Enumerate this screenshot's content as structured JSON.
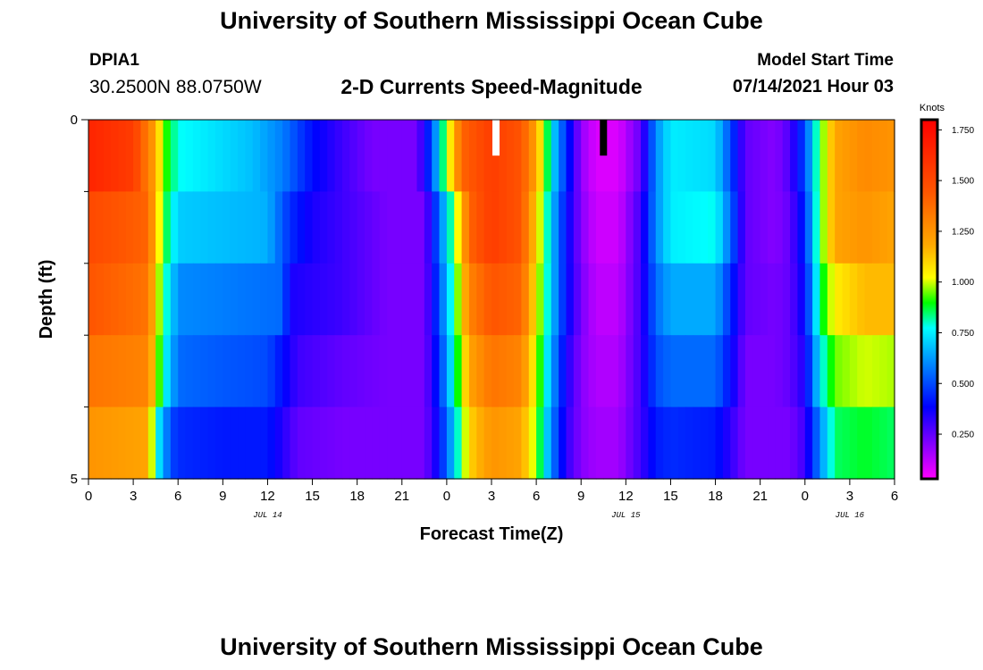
{
  "header": {
    "title": "University of Southern Mississippi Ocean Cube",
    "station": "DPIA1",
    "coordinates": "30.2500N  88.0750W",
    "subtitle": "2-D Currents Speed-Magnitude",
    "model_start_label": "Model Start Time",
    "model_start_value": "07/14/2021 Hour 03"
  },
  "footer": {
    "title": "University of Southern Mississippi Ocean Cube"
  },
  "chart_data": {
    "type": "heatmap",
    "xlabel": "Forecast Time(Z)",
    "ylabel": "Depth (ft)",
    "x_range_hours": [
      0,
      54
    ],
    "x_ticks": [
      {
        "h": 0,
        "label": "0"
      },
      {
        "h": 3,
        "label": "3"
      },
      {
        "h": 6,
        "label": "6"
      },
      {
        "h": 9,
        "label": "9"
      },
      {
        "h": 12,
        "label": "12"
      },
      {
        "h": 15,
        "label": "15"
      },
      {
        "h": 18,
        "label": "18"
      },
      {
        "h": 21,
        "label": "21"
      },
      {
        "h": 24,
        "label": "0"
      },
      {
        "h": 27,
        "label": "3"
      },
      {
        "h": 30,
        "label": "6"
      },
      {
        "h": 33,
        "label": "9"
      },
      {
        "h": 36,
        "label": "12"
      },
      {
        "h": 39,
        "label": "15"
      },
      {
        "h": 42,
        "label": "18"
      },
      {
        "h": 45,
        "label": "21"
      },
      {
        "h": 48,
        "label": "0"
      },
      {
        "h": 51,
        "label": "3"
      },
      {
        "h": 54,
        "label": "6"
      }
    ],
    "date_labels": [
      {
        "h": 12,
        "label": "JUL 14"
      },
      {
        "h": 36,
        "label": "JUL 15"
      },
      {
        "h": 51,
        "label": "JUL 16"
      }
    ],
    "y_range": [
      0,
      5
    ],
    "y_tick_labels": [
      {
        "v": 0,
        "label": "0"
      },
      {
        "v": 5,
        "label": "5"
      }
    ],
    "y_minor_ticks": [
      1,
      2,
      3,
      4
    ],
    "depth_layers": 5,
    "colorbar": {
      "title": "Knots",
      "range": [
        0.03,
        1.8
      ],
      "ticks": [
        "0.250",
        "0.500",
        "0.750",
        "1.000",
        "1.250",
        "1.500",
        "1.750"
      ],
      "tick_values": [
        0.25,
        0.5,
        0.75,
        1.0,
        1.25,
        1.5,
        1.75
      ]
    },
    "speed_profiles": [
      [
        [
          0,
          1.65
        ],
        [
          3,
          1.55
        ],
        [
          4.5,
          1.2
        ],
        [
          5,
          0.95
        ],
        [
          6,
          0.78
        ],
        [
          9,
          0.72
        ],
        [
          11,
          0.68
        ],
        [
          13,
          0.58
        ],
        [
          15,
          0.4
        ],
        [
          17,
          0.3
        ],
        [
          19,
          0.22
        ],
        [
          22,
          0.22
        ],
        [
          23,
          0.5
        ],
        [
          24,
          0.95
        ],
        [
          25,
          1.4
        ],
        [
          27,
          1.55
        ],
        [
          29,
          1.45
        ],
        [
          30,
          1.2
        ],
        [
          31,
          0.75
        ],
        [
          32,
          0.45
        ],
        [
          33,
          0.18
        ],
        [
          34,
          0.08
        ],
        [
          35.5,
          0.08
        ],
        [
          37,
          0.25
        ],
        [
          38,
          0.6
        ],
        [
          39,
          0.75
        ],
        [
          42,
          0.72
        ],
        [
          43,
          0.5
        ],
        [
          44,
          0.25
        ],
        [
          46,
          0.2
        ],
        [
          47,
          0.28
        ],
        [
          48,
          0.5
        ],
        [
          49,
          0.9
        ],
        [
          50,
          1.2
        ],
        [
          52,
          1.28
        ],
        [
          54,
          1.25
        ]
      ],
      [
        [
          0,
          1.5
        ],
        [
          4,
          1.4
        ],
        [
          5,
          0.9
        ],
        [
          6,
          0.7
        ],
        [
          9,
          0.68
        ],
        [
          12,
          0.66
        ],
        [
          13.5,
          0.45
        ],
        [
          15,
          0.35
        ],
        [
          17,
          0.3
        ],
        [
          20,
          0.22
        ],
        [
          22.5,
          0.22
        ],
        [
          23.5,
          0.55
        ],
        [
          24.5,
          0.9
        ],
        [
          25.5,
          1.4
        ],
        [
          27,
          1.55
        ],
        [
          29,
          1.45
        ],
        [
          30,
          1.1
        ],
        [
          31,
          0.7
        ],
        [
          32,
          0.4
        ],
        [
          33,
          0.2
        ],
        [
          34,
          0.1
        ],
        [
          35.5,
          0.1
        ],
        [
          37,
          0.3
        ],
        [
          38,
          0.6
        ],
        [
          39,
          0.75
        ],
        [
          42,
          0.78
        ],
        [
          43,
          0.55
        ],
        [
          44,
          0.25
        ],
        [
          46,
          0.2
        ],
        [
          47,
          0.25
        ],
        [
          48,
          0.45
        ],
        [
          49,
          0.9
        ],
        [
          50,
          1.2
        ],
        [
          52,
          1.25
        ],
        [
          54,
          1.2
        ]
      ],
      [
        [
          0,
          1.45
        ],
        [
          4,
          1.35
        ],
        [
          5,
          0.85
        ],
        [
          6,
          0.6
        ],
        [
          9,
          0.58
        ],
        [
          13,
          0.55
        ],
        [
          13.5,
          0.35
        ],
        [
          17,
          0.3
        ],
        [
          20,
          0.22
        ],
        [
          22.5,
          0.22
        ],
        [
          23.5,
          0.5
        ],
        [
          24.5,
          0.85
        ],
        [
          25.5,
          1.3
        ],
        [
          27,
          1.45
        ],
        [
          29,
          1.4
        ],
        [
          30,
          1.05
        ],
        [
          31,
          0.7
        ],
        [
          32,
          0.4
        ],
        [
          33,
          0.22
        ],
        [
          34,
          0.12
        ],
        [
          35.5,
          0.12
        ],
        [
          37,
          0.3
        ],
        [
          38,
          0.55
        ],
        [
          39,
          0.65
        ],
        [
          42,
          0.65
        ],
        [
          43,
          0.45
        ],
        [
          44,
          0.25
        ],
        [
          46,
          0.22
        ],
        [
          47,
          0.25
        ],
        [
          48,
          0.4
        ],
        [
          49,
          0.85
        ],
        [
          50,
          1.05
        ],
        [
          52,
          1.15
        ],
        [
          54,
          1.15
        ]
      ],
      [
        [
          0,
          1.35
        ],
        [
          4,
          1.3
        ],
        [
          5,
          0.8
        ],
        [
          6,
          0.55
        ],
        [
          9,
          0.52
        ],
        [
          12,
          0.5
        ],
        [
          14,
          0.3
        ],
        [
          17,
          0.25
        ],
        [
          20,
          0.22
        ],
        [
          22.5,
          0.22
        ],
        [
          23.5,
          0.45
        ],
        [
          24.5,
          0.8
        ],
        [
          25.5,
          1.2
        ],
        [
          27,
          1.35
        ],
        [
          29,
          1.3
        ],
        [
          30,
          1.0
        ],
        [
          31,
          0.65
        ],
        [
          32,
          0.35
        ],
        [
          33,
          0.2
        ],
        [
          34,
          0.14
        ],
        [
          35.5,
          0.14
        ],
        [
          37,
          0.3
        ],
        [
          38,
          0.5
        ],
        [
          39,
          0.55
        ],
        [
          42,
          0.55
        ],
        [
          43,
          0.4
        ],
        [
          44,
          0.22
        ],
        [
          46,
          0.22
        ],
        [
          47,
          0.25
        ],
        [
          48,
          0.35
        ],
        [
          49,
          0.75
        ],
        [
          50,
          0.95
        ],
        [
          52,
          1.0
        ],
        [
          54,
          0.98
        ]
      ],
      [
        [
          0,
          1.25
        ],
        [
          4,
          1.2
        ],
        [
          4.5,
          0.8
        ],
        [
          5.5,
          0.5
        ],
        [
          6,
          0.45
        ],
        [
          9,
          0.42
        ],
        [
          12,
          0.42
        ],
        [
          14,
          0.25
        ],
        [
          17,
          0.22
        ],
        [
          20,
          0.22
        ],
        [
          22.5,
          0.22
        ],
        [
          23.5,
          0.4
        ],
        [
          24.5,
          0.7
        ],
        [
          25.5,
          1.1
        ],
        [
          27,
          1.25
        ],
        [
          29,
          1.2
        ],
        [
          30,
          0.95
        ],
        [
          31,
          0.6
        ],
        [
          32,
          0.32
        ],
        [
          33,
          0.2
        ],
        [
          34,
          0.16
        ],
        [
          35.5,
          0.16
        ],
        [
          37,
          0.3
        ],
        [
          38,
          0.42
        ],
        [
          39,
          0.45
        ],
        [
          42,
          0.42
        ],
        [
          43,
          0.32
        ],
        [
          44,
          0.22
        ],
        [
          46,
          0.22
        ],
        [
          47,
          0.22
        ],
        [
          48,
          0.3
        ],
        [
          49,
          0.6
        ],
        [
          50,
          0.85
        ],
        [
          52,
          0.88
        ],
        [
          54,
          0.85
        ]
      ]
    ],
    "markers": [
      {
        "h": 27.3,
        "color": "#ffffff"
      },
      {
        "h": 34.5,
        "color": "#000000"
      }
    ]
  }
}
